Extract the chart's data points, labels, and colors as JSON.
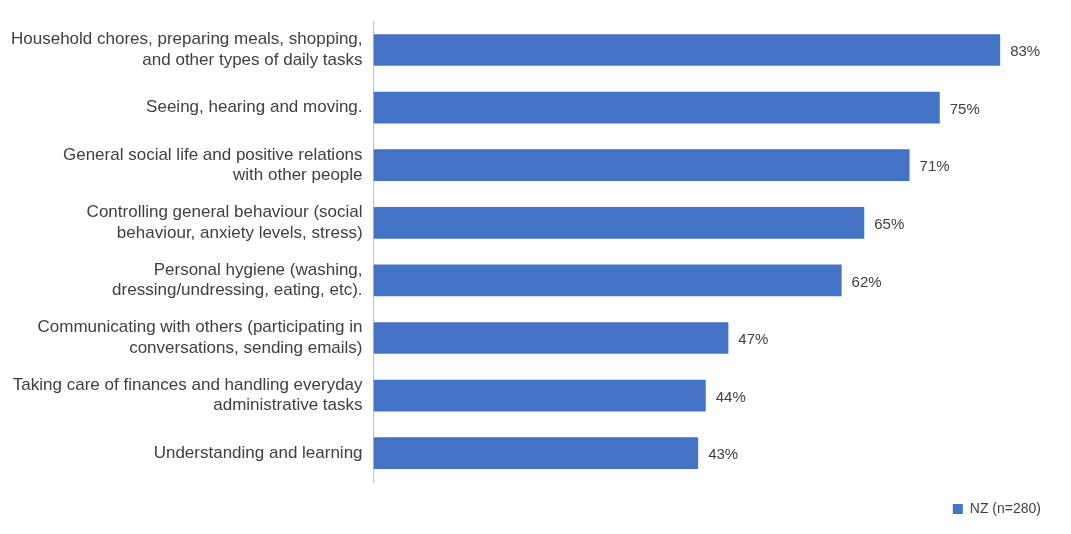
{
  "chart_data": {
    "type": "bar",
    "orientation": "horizontal",
    "categories": [
      "Household chores, preparing meals, shopping, and other types of daily tasks",
      "Seeing, hearing and moving.",
      "General social life and positive relations with other people",
      "Controlling general behaviour (social behaviour, anxiety levels, stress)",
      "Personal hygiene (washing, dressing/undressing, eating, etc).",
      "Communicating with others (participating in conversations, sending emails)",
      "Taking care of finances and handling everyday administrative tasks",
      "Understanding and learning"
    ],
    "series": [
      {
        "name": "NZ (n=280)",
        "color": "#4472c4",
        "values": [
          83,
          75,
          71,
          65,
          62,
          47,
          44,
          43
        ],
        "value_labels": [
          "83%",
          "75%",
          "71%",
          "65%",
          "62%",
          "47%",
          "44%",
          "43%"
        ]
      }
    ],
    "tick_labels": "y",
    "grid": false,
    "legend": "bottom right"
  }
}
